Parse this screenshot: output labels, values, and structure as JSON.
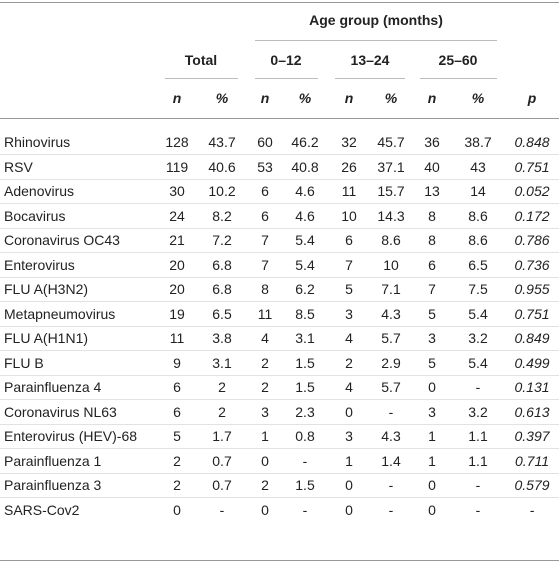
{
  "table": {
    "group_header": "Age group (months)",
    "column_groups": [
      "Total",
      "0–12",
      "13–24",
      "25–60"
    ],
    "subheaders": [
      "n",
      "%",
      "n",
      "%",
      "n",
      "%",
      "n",
      "%",
      "p"
    ],
    "rows": [
      [
        "Rhinovirus",
        "128",
        "43.7",
        "60",
        "46.2",
        "32",
        "45.7",
        "36",
        "38.7",
        "0.848"
      ],
      [
        "RSV",
        "119",
        "40.6",
        "53",
        "40.8",
        "26",
        "37.1",
        "40",
        "43",
        "0.751"
      ],
      [
        "Adenovirus",
        "30",
        "10.2",
        "6",
        "4.6",
        "11",
        "15.7",
        "13",
        "14",
        "0.052"
      ],
      [
        "Bocavirus",
        "24",
        "8.2",
        "6",
        "4.6",
        "10",
        "14.3",
        "8",
        "8.6",
        "0.172"
      ],
      [
        "Coronavirus OC43",
        "21",
        "7.2",
        "7",
        "5.4",
        "6",
        "8.6",
        "8",
        "8.6",
        "0.786"
      ],
      [
        "Enterovirus",
        "20",
        "6.8",
        "7",
        "5.4",
        "7",
        "10",
        "6",
        "6.5",
        "0.736"
      ],
      [
        "FLU A(H3N2)",
        "20",
        "6.8",
        "8",
        "6.2",
        "5",
        "7.1",
        "7",
        "7.5",
        "0.955"
      ],
      [
        "Metapneumovirus",
        "19",
        "6.5",
        "11",
        "8.5",
        "3",
        "4.3",
        "5",
        "5.4",
        "0.751"
      ],
      [
        "FLU A(H1N1)",
        "11",
        "3.8",
        "4",
        "3.1",
        "4",
        "5.7",
        "3",
        "3.2",
        "0.849"
      ],
      [
        "FLU B",
        "9",
        "3.1",
        "2",
        "1.5",
        "2",
        "2.9",
        "5",
        "5.4",
        "0.499"
      ],
      [
        "Parainfluenza 4",
        "6",
        "2",
        "2",
        "1.5",
        "4",
        "5.7",
        "0",
        "-",
        "0.131"
      ],
      [
        "Coronavirus NL63",
        "6",
        "2",
        "3",
        "2.3",
        "0",
        "-",
        "3",
        "3.2",
        "0.613"
      ],
      [
        "Enterovirus (HEV)-68",
        "5",
        "1.7",
        "1",
        "0.8",
        "3",
        "4.3",
        "1",
        "1.1",
        "0.397"
      ],
      [
        "Parainfluenza 1",
        "2",
        "0.7",
        "0",
        "-",
        "1",
        "1.4",
        "1",
        "1.1",
        "0.711"
      ],
      [
        "Parainfluenza 3",
        "2",
        "0.7",
        "2",
        "1.5",
        "0",
        "-",
        "0",
        "-",
        "0.579"
      ],
      [
        "SARS-Cov2",
        "0",
        "-",
        "0",
        "-",
        "0",
        "-",
        "0",
        "-",
        "-"
      ]
    ]
  }
}
